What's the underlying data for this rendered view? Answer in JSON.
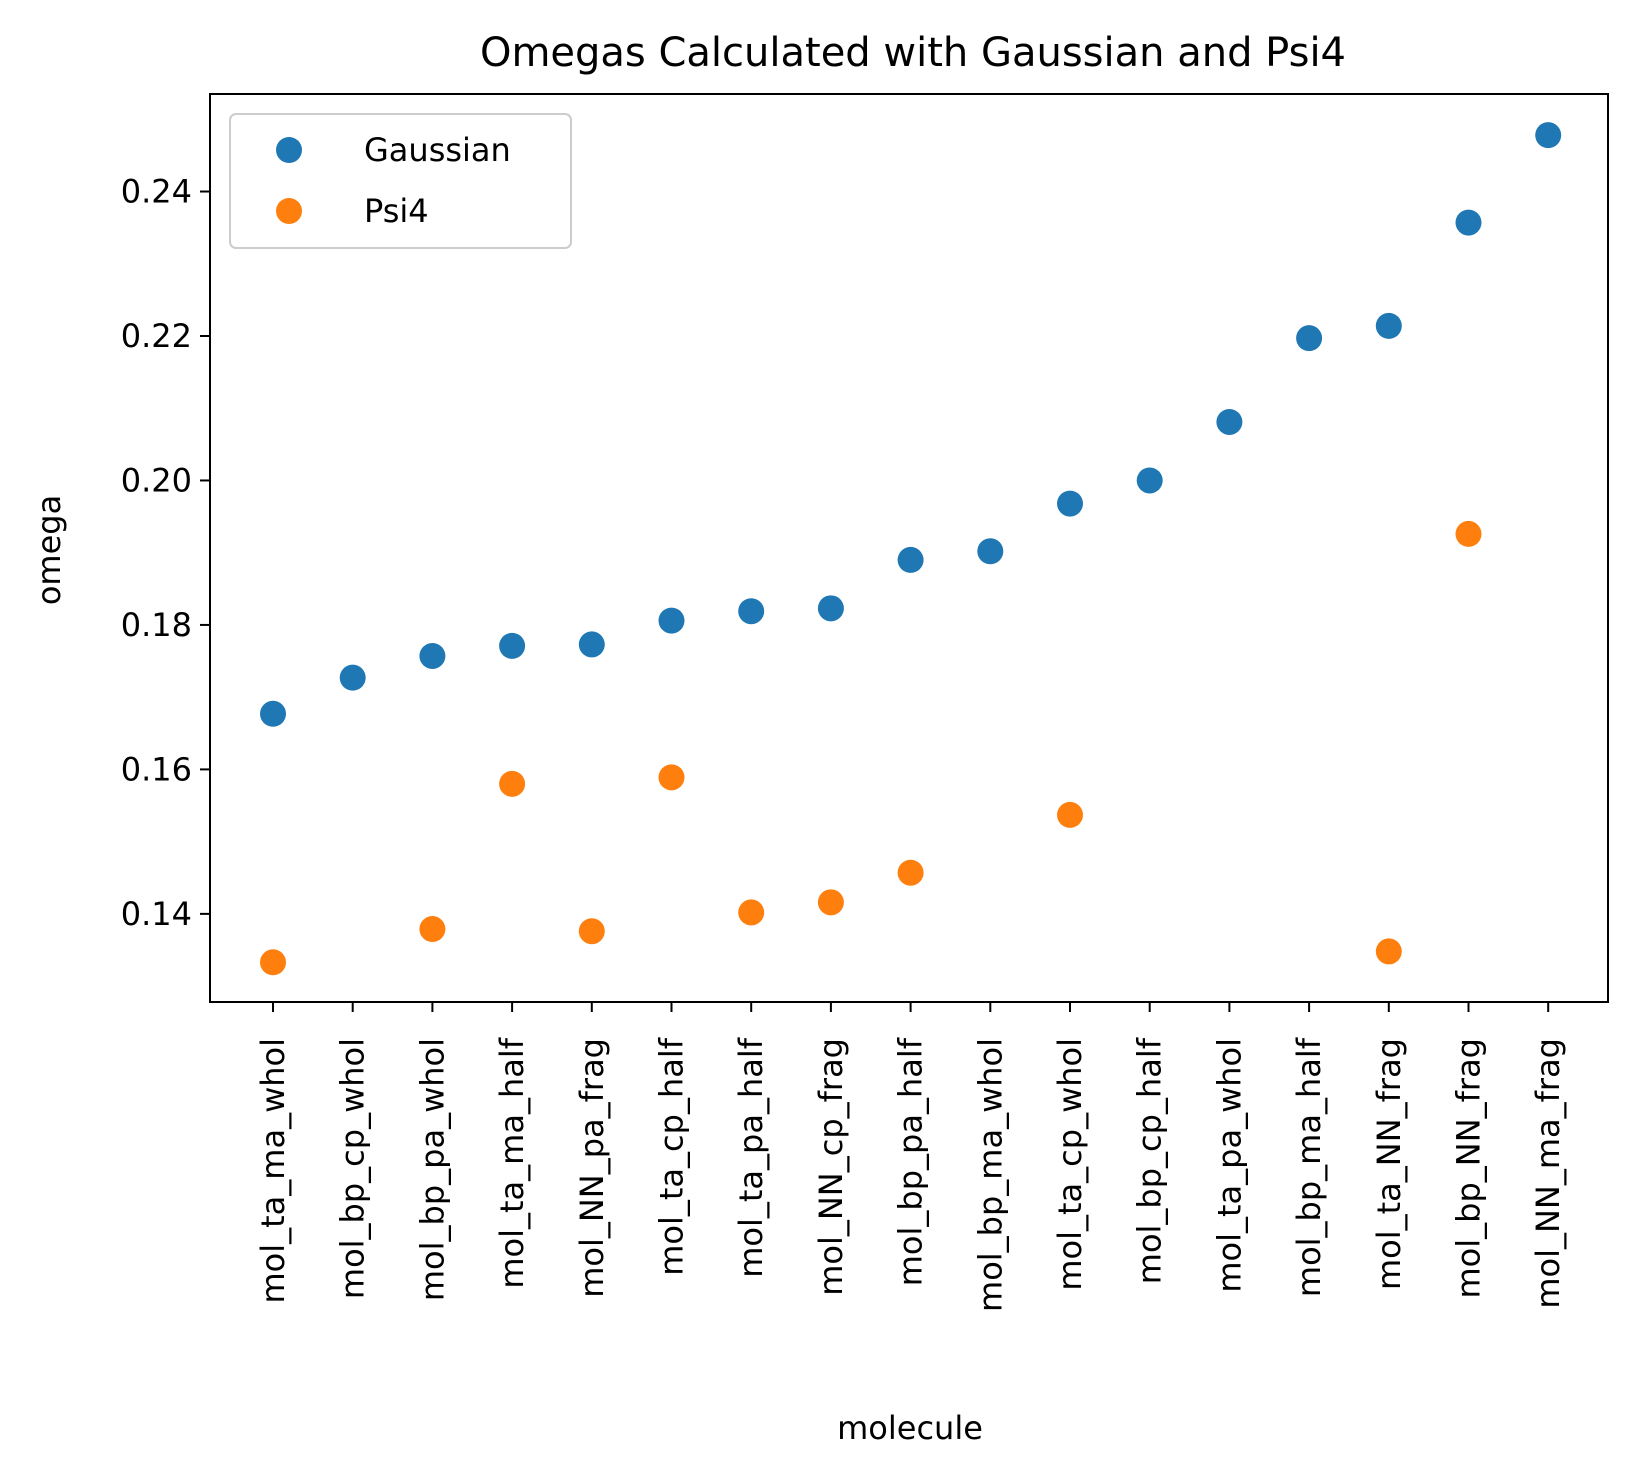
{
  "chart_data": {
    "type": "scatter",
    "title": "Omegas Calculated with Gaussian and Psi4",
    "xlabel": "molecule",
    "ylabel": "omega",
    "categories": [
      "mol_ta_ma_whol",
      "mol_bp_cp_whol",
      "mol_bp_pa_whol",
      "mol_ta_ma_half",
      "mol_NN_pa_frag",
      "mol_ta_cp_half",
      "mol_ta_pa_half",
      "mol_NN_cp_frag",
      "mol_bp_pa_half",
      "mol_bp_ma_whol",
      "mol_ta_cp_whol",
      "mol_bp_cp_half",
      "mol_ta_pa_whol",
      "mol_bp_ma_half",
      "mol_ta_NN_frag",
      "mol_bp_NN_frag",
      "mol_NN_ma_frag"
    ],
    "series": [
      {
        "name": "Gaussian",
        "color": "#1f77b4",
        "values": [
          0.1677,
          0.1727,
          0.1757,
          0.1771,
          0.1773,
          0.1806,
          0.1819,
          0.1823,
          0.189,
          0.1902,
          0.1968,
          0.2,
          0.2081,
          0.2197,
          0.2214,
          0.2357,
          0.2478
        ]
      },
      {
        "name": "Psi4",
        "color": "#ff7f0e",
        "values": [
          0.1333,
          null,
          0.1379,
          0.158,
          0.1376,
          0.1589,
          0.1402,
          0.1416,
          0.1457,
          null,
          0.1537,
          null,
          null,
          null,
          0.1348,
          0.1926,
          null
        ]
      }
    ],
    "yticks": [
      "0.14",
      "0.16",
      "0.18",
      "0.20",
      "0.22",
      "0.24"
    ],
    "ylim": [
      0.1278,
      0.2535
    ],
    "grid": false,
    "legend_position": "upper-left"
  }
}
